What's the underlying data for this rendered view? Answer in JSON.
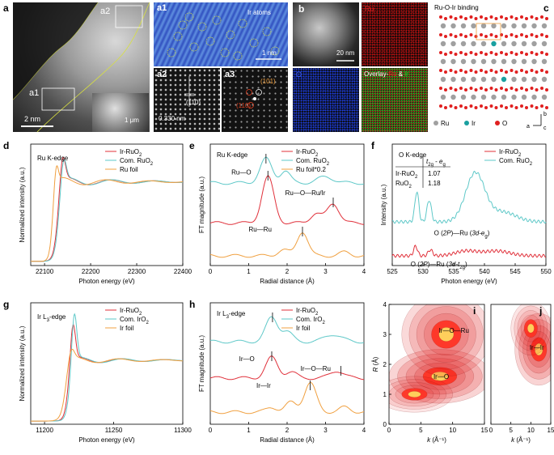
{
  "figure": {
    "panel_labels": [
      "a",
      "a1",
      "a2",
      "a3",
      "b",
      "c",
      "d",
      "e",
      "f",
      "g",
      "h",
      "i",
      "j"
    ],
    "panel_a": {
      "region_labels": [
        "a2",
        "a1"
      ],
      "scale_main": "2 nm",
      "scale_inset": "1 μm"
    },
    "panel_a1": {
      "annotation": "Ir atoms",
      "scale": "1 nm"
    },
    "panel_a2": {
      "plane": "(110)",
      "spacing": "0.330 nm"
    },
    "panel_a3": {
      "planes": [
        "(101)",
        "(110)"
      ]
    },
    "panel_b": {
      "scale": "20 nm",
      "maps": [
        "Ru",
        "O"
      ],
      "overlay_prefix": "Overlay-",
      "overlay_ru": "Ru",
      "overlay_amp": " & ",
      "overlay_ir": "Ir"
    },
    "panel_c": {
      "title": "Ru-O-Ir binding",
      "legend": [
        {
          "label": "Ru",
          "color": "#a0a0a0"
        },
        {
          "label": "Ir",
          "color": "#1aa0a0"
        },
        {
          "label": "O",
          "color": "#e02020"
        }
      ],
      "axes": [
        "b",
        "a",
        "c"
      ]
    },
    "colors": {
      "red": "#e0303a",
      "teal": "#5ec8c8",
      "orange": "#f0a040"
    }
  },
  "chart_data": [
    {
      "id": "d",
      "type": "line",
      "title": "Ru K-edge",
      "xlabel": "Photon energy (eV)",
      "ylabel": "Normalized intensity (a.u.)",
      "xlim": [
        22070,
        22400
      ],
      "ylim": [
        0,
        1.45
      ],
      "xticks": [
        22100,
        22200,
        22300,
        22400
      ],
      "series": [
        {
          "name": "Ir-RuO₂",
          "color": "#e0303a",
          "edge": 22128,
          "peak": 1.28,
          "w": 8
        },
        {
          "name": "Com. RuO₂",
          "color": "#5ec8c8",
          "edge": 22130,
          "peak": 1.25,
          "w": 8
        },
        {
          "name": "Ru foil",
          "color": "#f0a040",
          "edge": 22117,
          "peak": 1.18,
          "w": 6
        }
      ]
    },
    {
      "id": "e",
      "type": "line",
      "title": "Ru K-edge",
      "xlabel": "Radial distance (Å)",
      "ylabel": "FT magnitude (a.u.)",
      "xlim": [
        0,
        4
      ],
      "ylim": [
        0,
        1
      ],
      "xticks": [
        "0",
        "1",
        "2",
        "3",
        "4"
      ],
      "series": [
        {
          "name": "Ir-RuO₂",
          "color": "#e0303a",
          "offset": 0.35,
          "peaks": [
            [
              1.5,
              0.38,
              0.22
            ],
            [
              2.75,
              0.08,
              0.2
            ],
            [
              3.2,
              0.16,
              0.22
            ]
          ]
        },
        {
          "name": "Com. RuO₂",
          "color": "#5ec8c8",
          "offset": 0.68,
          "peaks": [
            [
              1.45,
              0.2,
              0.22
            ],
            [
              1.95,
              0.1,
              0.18
            ],
            [
              3.0,
              0.05,
              0.3
            ]
          ]
        },
        {
          "name": "Ru foil*0.2",
          "color": "#f0a040",
          "offset": 0.08,
          "peaks": [
            [
              2.4,
              0.2,
              0.2
            ],
            [
              1.9,
              0.05,
              0.2
            ],
            [
              3.5,
              0.03,
              0.2
            ]
          ]
        }
      ],
      "annotations": [
        "Ru—O",
        "Ru—O—Ru/Ir",
        "Ru—Ru"
      ]
    },
    {
      "id": "f",
      "type": "line",
      "title": "O K-edge",
      "xlabel": "Photon energy (eV)",
      "ylabel": "Intensity (a.u.)",
      "xlim": [
        525,
        550
      ],
      "ylim": [
        0,
        1
      ],
      "xticks": [
        525,
        530,
        535,
        540,
        545,
        550
      ],
      "series": [
        {
          "name": "Ir-RuO₂",
          "color": "#e0303a",
          "offset": 0.08,
          "peaks": [
            [
              528.8,
              0.08,
              0.45
            ],
            [
              531.2,
              0.05,
              0.5
            ],
            [
              537,
              0.04,
              2.5
            ],
            [
              542,
              0.04,
              3
            ]
          ]
        },
        {
          "name": "Com. RuO₂",
          "color": "#5ec8c8",
          "offset": 0.36,
          "peaks": [
            [
              529,
              0.25,
              0.45
            ],
            [
              531,
              0.18,
              0.5
            ],
            [
              538.5,
              0.4,
              2.2
            ],
            [
              543,
              0.08,
              3
            ]
          ]
        }
      ],
      "table": {
        "header": "t2g - eg",
        "rows": [
          {
            "label": "Ir-RuO₂",
            "value": "1.07"
          },
          {
            "label": "RuO₂",
            "value": "1.18"
          }
        ]
      },
      "annotations": [
        "O (2P)—Ru (3d-eg)",
        "O (2P)—Ru (3d-t2g)"
      ]
    },
    {
      "id": "g",
      "type": "line",
      "title": "Ir L₃-edge",
      "xlabel": "Photon energy (eV)",
      "ylabel": "Normalized intensity (a.u.)",
      "xlim": [
        11190,
        11300
      ],
      "ylim": [
        0,
        1.9
      ],
      "xticks": [
        11200,
        11250,
        11300
      ],
      "series": [
        {
          "name": "Ir-RuO₂",
          "color": "#e0303a",
          "edge": 11217,
          "peak": 1.55,
          "w": 2.5
        },
        {
          "name": "Com. IrO₂",
          "color": "#5ec8c8",
          "edge": 11218,
          "peak": 1.72,
          "w": 2.5
        },
        {
          "name": "Ir foil",
          "color": "#f0a040",
          "edge": 11215,
          "peak": 1.15,
          "w": 3
        }
      ]
    },
    {
      "id": "h",
      "type": "line",
      "title": "Ir L₃-edge",
      "xlabel": "Radial distance (Å)",
      "ylabel": "FT magnitude (a.u.)",
      "xlim": [
        0,
        4
      ],
      "ylim": [
        0,
        1
      ],
      "xticks": [
        "0",
        "1",
        "2",
        "3",
        "4"
      ],
      "series": [
        {
          "name": "Ir-RuO₂",
          "color": "#e0303a",
          "offset": 0.38,
          "peaks": [
            [
              1.6,
              0.17,
              0.22
            ],
            [
              2.1,
              0.05,
              0.2
            ],
            [
              3.3,
              0.06,
              0.25
            ]
          ]
        },
        {
          "name": "Com. IrO₂",
          "color": "#5ec8c8",
          "offset": 0.68,
          "peaks": [
            [
              1.6,
              0.2,
              0.22
            ],
            [
              2.0,
              0.08,
              0.2
            ],
            [
              3.2,
              0.06,
              0.3
            ]
          ]
        },
        {
          "name": "Ir foil",
          "color": "#f0a040",
          "offset": 0.1,
          "peaks": [
            [
              2.6,
              0.24,
              0.22
            ],
            [
              2.1,
              0.08,
              0.2
            ],
            [
              1.6,
              0.04,
              0.2
            ],
            [
              3.5,
              0.04,
              0.2
            ]
          ]
        }
      ],
      "annotations": [
        "Ir—O",
        "Ir—O—Ru",
        "Ir—Ir"
      ]
    },
    {
      "id": "i",
      "type": "heatmap",
      "xlabel": "k (Å⁻¹)",
      "ylabel": "R (Å)",
      "xlim": [
        0,
        15
      ],
      "ylim": [
        0,
        4
      ],
      "xticks": [
        0,
        5,
        10,
        15
      ],
      "yticks": [
        0,
        1,
        2,
        3,
        4
      ],
      "labels": [
        "Ir—O—Ru",
        "Ir—O"
      ]
    },
    {
      "id": "j",
      "type": "heatmap",
      "xlabel": "k (Å⁻¹)",
      "xlim": [
        0,
        15
      ],
      "ylim": [
        0,
        4
      ],
      "xticks": [
        0,
        5,
        10,
        15
      ],
      "labels": [
        "Ir—Ir"
      ]
    }
  ]
}
